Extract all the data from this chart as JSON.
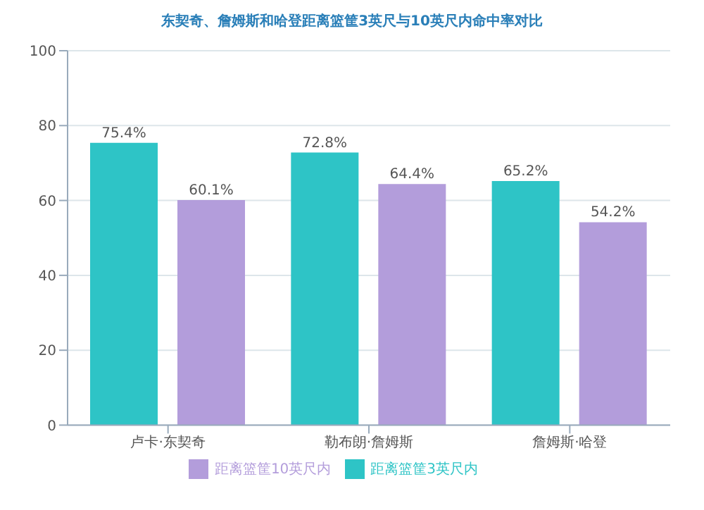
{
  "chart_data": {
    "type": "bar",
    "title": "东契奇、詹姆斯和哈登距离篮筐3英尺与10英尺内命中率对比",
    "categories": [
      "卢卡·东契奇",
      "勒布朗·詹姆斯",
      "詹姆斯·哈登"
    ],
    "series": [
      {
        "name": "距离篮筐3英尺内",
        "color": "#2ec4c6",
        "values": [
          75.4,
          72.8,
          65.2
        ],
        "value_labels": [
          "75.4%",
          "72.8%",
          "65.2%"
        ]
      },
      {
        "name": "距离篮筐10英尺内",
        "color": "#b39ddb",
        "values": [
          60.1,
          64.4,
          54.2
        ],
        "value_labels": [
          "60.1%",
          "64.4%",
          "54.2%"
        ]
      }
    ],
    "ylim": [
      0,
      100
    ],
    "yticks": [
      0,
      20,
      40,
      60,
      80,
      100
    ],
    "grid": "y",
    "legend": "bottom"
  }
}
